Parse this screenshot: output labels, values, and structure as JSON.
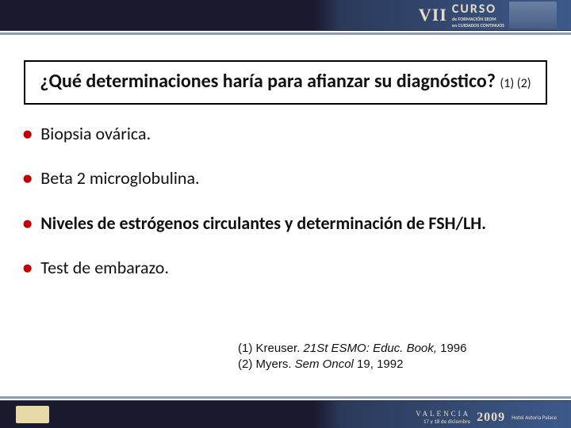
{
  "colors": {
    "bullet": "#c00000",
    "border": "#000000",
    "headerDark": "#1a1a2e",
    "headerLight": "#3c5a8a",
    "rule": "#8a9db5",
    "logoText": "#e6dcc8"
  },
  "header": {
    "roman": "VII",
    "curso": "CURSO",
    "line1": "de FORMACIÓN SEOM",
    "line2": "en CUIDADOS CONTINUOS"
  },
  "question": {
    "line": "¿Qué determinaciones haría para afianzar su diagnóstico?",
    "refs": "(1) (2)"
  },
  "bullets": [
    {
      "text": "Biopsia ovárica.",
      "bold": false
    },
    {
      "text": "Beta 2 microglobulina.",
      "bold": false
    },
    {
      "text": "Niveles de estrógenos circulantes y determinación de FSH/LH.",
      "bold": true
    },
    {
      "text": "Test de embarazo.",
      "bold": false
    }
  ],
  "citations": {
    "c1_lead": "(1) Kreuser. ",
    "c1_ital": "21St ESMO: Educ. Book, ",
    "c1_year": "1996",
    "c2_lead": "(2) Myers. ",
    "c2_ital": "Sem Oncol ",
    "c2_rest": "19, 1992"
  },
  "footer": {
    "city": "VALENCIA",
    "dates": "17 y 18 de diciembre",
    "year": "2009",
    "hotel": "Hotel Astoria Palace"
  }
}
